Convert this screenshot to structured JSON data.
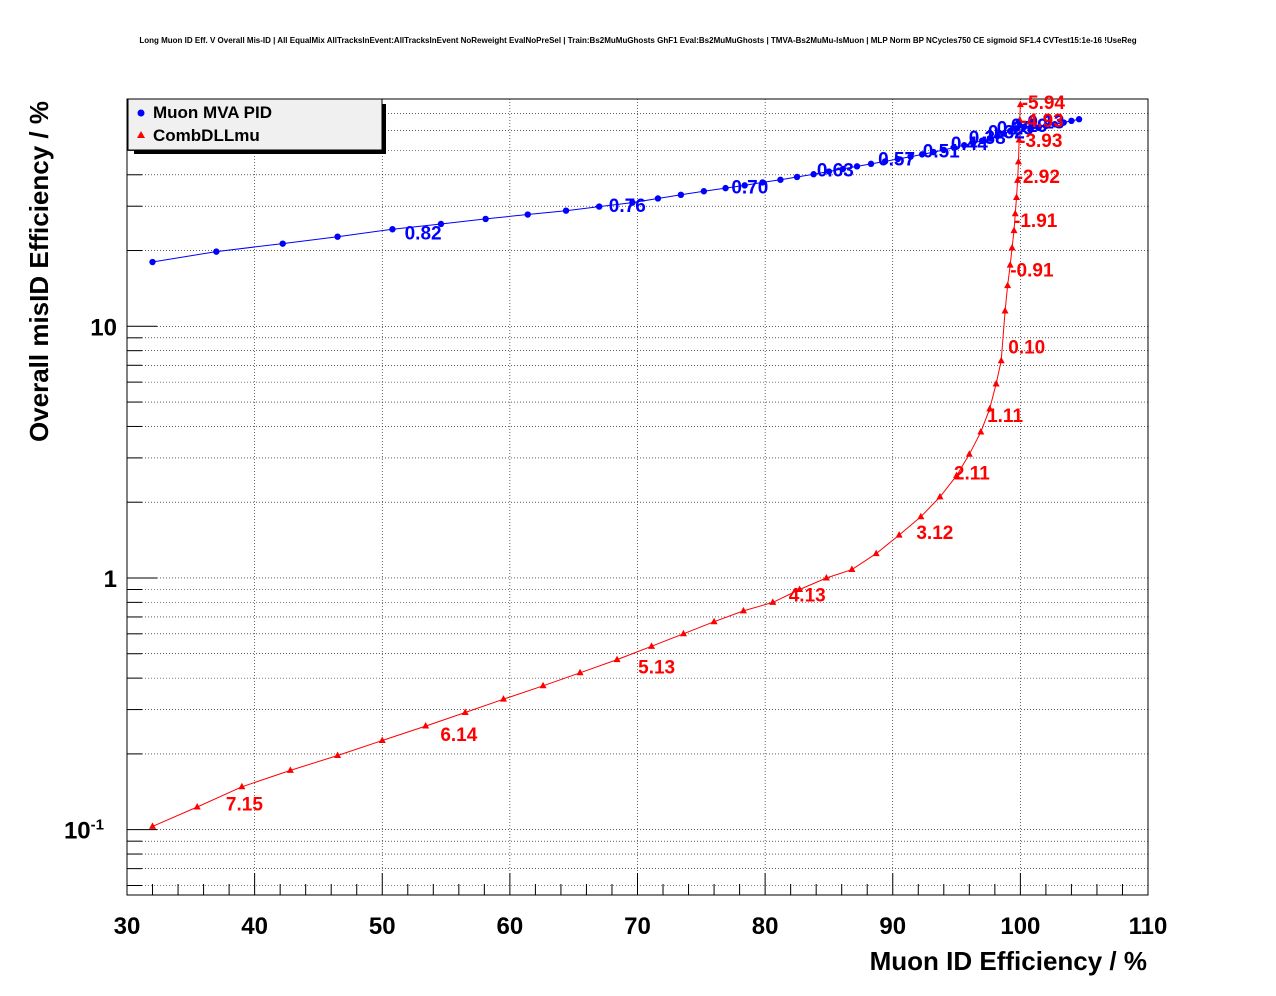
{
  "chart_data": {
    "type": "line",
    "title": "Long Muon ID Eff. V Overall Mis-ID | All EqualMix AllTracksInEvent:AllTracksInEvent NoReweight EvalNoPreSel | Train:Bs2MuMuGhosts GhF1 Eval:Bs2MuMuGhosts | TMVA-Bs2MuMu-IsMuon | MLP Norm BP NCycles750 CE sigmoid SF1.4 CVTest15:1e-16 !UseReg",
    "xlabel": "Muon ID Efficiency / %",
    "ylabel": "Overall misID Efficiency / %",
    "xlim": [
      30,
      110
    ],
    "ylim": [
      0.055,
      80
    ],
    "yscale": "log",
    "grid": true,
    "legend_position": "top-left",
    "x_ticks": [
      "30",
      "40",
      "50",
      "60",
      "70",
      "80",
      "90",
      "100",
      "110"
    ],
    "x_tick_values": [
      30,
      40,
      50,
      60,
      70,
      80,
      90,
      100,
      110
    ],
    "y_ticks": [
      {
        "value": 0.1,
        "base": "10",
        "exp": "-1"
      },
      {
        "value": 1,
        "base": "1",
        "exp": ""
      },
      {
        "value": 10,
        "base": "10",
        "exp": ""
      }
    ],
    "series": [
      {
        "name": "Muon MVA PID",
        "color": "#0000ff",
        "marker": "circle",
        "x": [
          32,
          37,
          42.2,
          46.5,
          50.8,
          54.6,
          58.1,
          61.4,
          64.4,
          67,
          69.6,
          71.6,
          73.4,
          75.2,
          76.9,
          78.4,
          79.8,
          81.2,
          82.5,
          83.8,
          85,
          86.1,
          87.2,
          88.3,
          89.4,
          90.4,
          91.4,
          92.3,
          93.2,
          94,
          94.8,
          95.6,
          96.3,
          97,
          97.6,
          98.2,
          98.7,
          99.2,
          99.6,
          99.9,
          100.3,
          100.8,
          101.4,
          102,
          102.7,
          103.4,
          104,
          104.6
        ],
        "y": [
          18,
          19.8,
          21.3,
          22.7,
          24.3,
          25.5,
          26.7,
          27.8,
          28.8,
          29.9,
          31,
          32.2,
          33.3,
          34.4,
          35.4,
          36.3,
          37.3,
          38.2,
          39.2,
          40.2,
          41.2,
          42.2,
          43.2,
          44.2,
          45.2,
          46.2,
          47.2,
          48.2,
          49.2,
          50.2,
          51.3,
          52.4,
          53.5,
          54.6,
          55.8,
          57,
          58.3,
          59.7,
          61.2,
          65,
          62,
          60.5,
          61.5,
          62.5,
          63.5,
          64.5,
          65.5,
          66.5
        ],
        "labels": [
          {
            "text": "0.82",
            "x": 53.2,
            "y": 23.6
          },
          {
            "text": "0.76",
            "x": 69.2,
            "y": 30.4
          },
          {
            "text": "0.70",
            "x": 78.8,
            "y": 36.0
          },
          {
            "text": "0.63",
            "x": 85.5,
            "y": 42.0
          },
          {
            "text": "0.57",
            "x": 90.3,
            "y": 46.5
          },
          {
            "text": "0.51",
            "x": 93.8,
            "y": 50.0
          },
          {
            "text": "0.44",
            "x": 96.0,
            "y": 53.5
          },
          {
            "text": "0.38",
            "x": 97.4,
            "y": 56.5
          },
          {
            "text": "0.32",
            "x": 98.9,
            "y": 59.5
          },
          {
            "text": "0.25",
            "x": 99.6,
            "y": 61.5
          },
          {
            "text": "0.19",
            "x": 100.7,
            "y": 63.0
          },
          {
            "text": "0.13",
            "x": 102.0,
            "y": 65.0
          }
        ]
      },
      {
        "name": "CombDLLmu",
        "color": "#ff0000",
        "marker": "triangle",
        "x": [
          32,
          35.5,
          39,
          42.8,
          46.5,
          50,
          53.4,
          56.5,
          59.5,
          62.6,
          65.5,
          68.4,
          71.1,
          73.6,
          76,
          78.3,
          80.6,
          82.7,
          84.8,
          86.8,
          88.7,
          90.5,
          92.2,
          93.7,
          95,
          96,
          96.9,
          97.6,
          98.1,
          98.5,
          98.8,
          99.0,
          99.2,
          99.35,
          99.5,
          99.6,
          99.7,
          99.78,
          99.85,
          99.9,
          99.95,
          100
        ],
        "y": [
          0.103,
          0.123,
          0.148,
          0.172,
          0.197,
          0.226,
          0.258,
          0.292,
          0.33,
          0.373,
          0.42,
          0.474,
          0.535,
          0.6,
          0.67,
          0.74,
          0.8,
          0.9,
          1.0,
          1.08,
          1.25,
          1.48,
          1.75,
          2.1,
          2.55,
          3.1,
          3.8,
          4.7,
          5.9,
          7.3,
          11.5,
          14.5,
          17.5,
          20.5,
          24,
          28,
          32.5,
          38,
          45,
          55,
          66,
          76
        ],
        "labels": [
          {
            "text": "7.15",
            "x": 39.2,
            "y": 0.127
          },
          {
            "text": "6.14",
            "x": 56.0,
            "y": 0.24
          },
          {
            "text": "5.13",
            "x": 71.5,
            "y": 0.445
          },
          {
            "text": "4.13",
            "x": 83.3,
            "y": 0.86
          },
          {
            "text": "3.12",
            "x": 93.3,
            "y": 1.52
          },
          {
            "text": "2.11",
            "x": 96.2,
            "y": 2.62
          },
          {
            "text": "1.11",
            "x": 98.8,
            "y": 4.45
          },
          {
            "text": "0.10",
            "x": 100.5,
            "y": 8.3
          },
          {
            "text": "-0.91",
            "x": 100.9,
            "y": 16.8
          },
          {
            "text": "-1.91",
            "x": 101.2,
            "y": 26.5
          },
          {
            "text": "-2.92",
            "x": 101.4,
            "y": 39.5
          },
          {
            "text": "-3.93",
            "x": 101.6,
            "y": 55.0
          },
          {
            "text": "-4.93",
            "x": 101.7,
            "y": 66.0
          },
          {
            "text": "-5.94",
            "x": 101.8,
            "y": 78.0
          }
        ]
      }
    ]
  },
  "legend": {
    "entries": [
      {
        "label": "Muon MVA PID",
        "color": "#0000ff",
        "marker": "circle"
      },
      {
        "label": "CombDLLmu",
        "color": "#ff0000",
        "marker": "triangle"
      }
    ]
  }
}
